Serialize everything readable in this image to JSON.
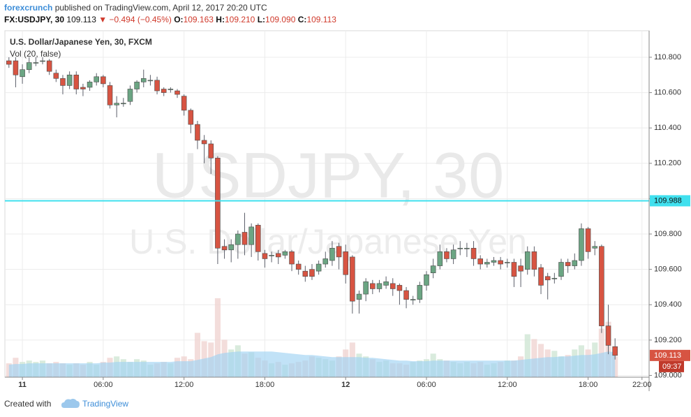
{
  "header": {
    "author": "forexcrunch",
    "published": "published on TradingView.com, April 12, 2017 20:20 UTC",
    "symbol": "FX:USDJPY, 30",
    "last": "109.113",
    "change": "−0.494 (−0.45%)",
    "ohlc": [
      {
        "label": "O:",
        "value": "109.163"
      },
      {
        "label": "H:",
        "value": "109.210"
      },
      {
        "label": "L:",
        "value": "109.090"
      },
      {
        "label": "C:",
        "value": "109.113"
      }
    ]
  },
  "footer": {
    "created": "Created with",
    "brand": "TradingView"
  },
  "chart_data": {
    "type": "candlestick",
    "legend_title": "U.S. Dollar/Japanese Yen, 30, FXCM",
    "legend_subtitle": "Vol (20, false)",
    "watermark": "USDJPY, 30",
    "watermark_subtitle": "U.S. Dollar/Japanese Yen",
    "x": [
      -1,
      -0.5,
      0,
      0.5,
      1,
      1.5,
      2,
      2.5,
      3,
      3.5,
      4,
      4.5,
      5,
      5.5,
      6,
      6.5,
      7,
      7.5,
      8,
      8.5,
      9,
      9.5,
      10,
      10.5,
      11,
      11.5,
      12,
      12.5,
      13,
      13.5,
      14,
      14.5,
      15,
      15.5,
      16,
      16.5,
      17,
      17.5,
      18,
      18.5,
      19,
      19.5,
      20,
      20.5,
      21,
      21.5,
      22,
      22.5,
      23,
      23.5,
      24,
      24.5,
      25,
      25.5,
      26,
      26.5,
      27,
      27.5,
      28,
      28.5,
      29,
      29.5,
      30,
      30.5,
      31,
      31.5,
      32,
      32.5,
      33,
      33.5,
      34,
      34.5,
      35,
      35.5,
      36,
      36.5,
      37,
      37.5,
      38,
      38.5,
      39,
      39.5,
      40,
      40.5,
      41,
      41.5,
      42,
      42.5,
      43,
      43.5,
      44
    ],
    "open": [
      110.78,
      110.78,
      110.69,
      110.73,
      110.77,
      110.78,
      110.78,
      110.71,
      110.68,
      110.64,
      110.7,
      110.63,
      110.63,
      110.66,
      110.69,
      110.64,
      110.53,
      110.54,
      110.55,
      110.62,
      110.66,
      110.67,
      110.67,
      110.62,
      110.62,
      110.61,
      110.58,
      110.5,
      110.42,
      110.33,
      110.31,
      110.23,
      109.73,
      109.71,
      109.74,
      109.81,
      109.74,
      109.85,
      109.69,
      109.68,
      109.69,
      109.68,
      109.7,
      109.63,
      109.59,
      109.6,
      109.59,
      109.63,
      109.65,
      109.73,
      109.7,
      109.67,
      109.43,
      109.46,
      109.52,
      109.49,
      109.51,
      109.52,
      109.51,
      109.48,
      109.43,
      109.43,
      109.51,
      109.58,
      109.62,
      109.7,
      109.66,
      109.72,
      109.72,
      109.72,
      109.66,
      109.63,
      109.64,
      109.65,
      109.64,
      109.64,
      109.62,
      109.6,
      109.7,
      109.61,
      109.56,
      109.55,
      109.56,
      109.64,
      109.62,
      109.65,
      109.83,
      109.72,
      109.73,
      109.28,
      109.163
    ],
    "high": [
      110.8,
      110.8,
      110.76,
      110.8,
      110.8,
      110.8,
      110.79,
      110.73,
      110.7,
      110.72,
      110.72,
      110.65,
      110.67,
      110.71,
      110.7,
      110.66,
      110.58,
      110.57,
      110.64,
      110.67,
      110.73,
      110.7,
      110.69,
      110.63,
      110.63,
      110.62,
      110.59,
      110.51,
      110.44,
      110.36,
      110.33,
      110.24,
      109.77,
      109.77,
      109.82,
      109.92,
      109.86,
      109.86,
      109.71,
      109.7,
      109.71,
      109.71,
      109.71,
      109.65,
      109.62,
      109.63,
      109.65,
      109.7,
      109.76,
      109.75,
      109.74,
      109.68,
      109.48,
      109.55,
      109.54,
      109.54,
      109.56,
      109.55,
      109.52,
      109.5,
      109.45,
      109.53,
      109.59,
      109.66,
      109.74,
      109.72,
      109.74,
      109.76,
      109.75,
      109.76,
      109.68,
      109.66,
      109.67,
      109.67,
      109.66,
      109.66,
      109.66,
      109.73,
      109.73,
      109.63,
      109.58,
      109.58,
      109.66,
      109.66,
      109.69,
      109.86,
      109.84,
      109.76,
      109.74,
      109.4,
      109.21
    ],
    "low": [
      110.74,
      110.63,
      110.65,
      110.71,
      110.75,
      110.76,
      110.7,
      110.66,
      110.59,
      110.62,
      110.59,
      110.58,
      110.61,
      110.64,
      110.63,
      110.51,
      110.46,
      110.52,
      110.53,
      110.6,
      110.63,
      110.64,
      110.59,
      110.58,
      110.6,
      110.57,
      110.47,
      110.37,
      110.28,
      110.2,
      110.14,
      109.63,
      109.66,
      109.64,
      109.66,
      109.68,
      109.67,
      109.65,
      109.61,
      109.64,
      109.63,
      109.66,
      109.59,
      109.57,
      109.53,
      109.54,
      109.57,
      109.61,
      109.62,
      109.6,
      109.52,
      109.35,
      109.35,
      109.42,
      109.46,
      109.47,
      109.49,
      109.45,
      109.4,
      109.38,
      109.4,
      109.41,
      109.48,
      109.55,
      109.6,
      109.64,
      109.63,
      109.68,
      109.67,
      109.62,
      109.6,
      109.61,
      109.62,
      109.6,
      109.61,
      109.5,
      109.5,
      109.57,
      109.56,
      109.46,
      109.43,
      109.52,
      109.54,
      109.58,
      109.6,
      109.62,
      109.66,
      109.68,
      109.24,
      109.12,
      109.09
    ],
    "close": [
      110.76,
      110.7,
      110.73,
      110.77,
      110.77,
      110.78,
      110.72,
      110.68,
      110.64,
      110.7,
      110.62,
      110.62,
      110.66,
      110.69,
      110.65,
      110.53,
      110.54,
      110.54,
      110.62,
      110.66,
      110.68,
      110.67,
      110.61,
      110.6,
      110.62,
      110.59,
      110.5,
      110.42,
      110.33,
      110.31,
      110.23,
      109.72,
      109.71,
      109.74,
      109.8,
      109.74,
      109.84,
      109.7,
      109.66,
      109.68,
      109.67,
      109.7,
      109.63,
      109.6,
      109.56,
      109.56,
      109.63,
      109.66,
      109.72,
      109.67,
      109.57,
      109.42,
      109.46,
      109.53,
      109.49,
      109.52,
      109.53,
      109.49,
      109.48,
      109.43,
      109.43,
      109.51,
      109.57,
      109.62,
      109.7,
      109.66,
      109.71,
      109.72,
      109.72,
      109.66,
      109.63,
      109.64,
      109.65,
      109.63,
      109.64,
      109.56,
      109.59,
      109.7,
      109.6,
      109.51,
      109.54,
      109.55,
      109.64,
      109.62,
      109.65,
      109.83,
      109.7,
      109.73,
      109.28,
      109.17,
      109.113
    ],
    "xlim": [
      -1.3,
      46.53
    ],
    "xticks": [
      {
        "value": 0,
        "label": "11"
      },
      {
        "value": 6,
        "label": "06:00"
      },
      {
        "value": 12,
        "label": "12:00"
      },
      {
        "value": 18,
        "label": "18:00"
      },
      {
        "value": 24,
        "label": "12"
      },
      {
        "value": 30,
        "label": "06:00"
      },
      {
        "value": 36,
        "label": "12:00"
      },
      {
        "value": 42,
        "label": "18:00"
      },
      {
        "value": 46,
        "label": "22:00"
      }
    ],
    "ylim": [
      108.99,
      110.95
    ],
    "yticks": [
      {
        "value": 109,
        "label": "109.000"
      },
      {
        "value": 109.2,
        "label": "109.200"
      },
      {
        "value": 109.4,
        "label": "109.400"
      },
      {
        "value": 109.6,
        "label": "109.600"
      },
      {
        "value": 109.8,
        "label": "109.800"
      },
      {
        "value": 110,
        "label": "110.000"
      },
      {
        "value": 110.2,
        "label": "110.200"
      },
      {
        "value": 110.4,
        "label": "110.400"
      },
      {
        "value": 110.6,
        "label": "110.600"
      },
      {
        "value": 110.8,
        "label": "110.800"
      }
    ],
    "grid": true,
    "up_color": "#6ba583",
    "down_color": "#d75442",
    "volume": {
      "ylim": [
        0,
        500
      ],
      "up_color": "#cfe6d5",
      "down_color": "#f0d5d2",
      "ma_color": "#9fd3f2",
      "values": [
        20,
        28,
        22,
        24,
        22,
        24,
        20,
        22,
        20,
        18,
        20,
        18,
        22,
        18,
        22,
        28,
        30,
        26,
        22,
        26,
        24,
        18,
        20,
        22,
        20,
        28,
        30,
        26,
        64,
        52,
        50,
        114,
        54,
        40,
        46,
        34,
        36,
        28,
        24,
        20,
        22,
        18,
        20,
        22,
        24,
        30,
        28,
        26,
        24,
        30,
        40,
        50,
        34,
        30,
        26,
        22,
        24,
        20,
        20,
        18,
        22,
        24,
        26,
        34,
        26,
        24,
        22,
        20,
        22,
        20,
        22,
        18,
        20,
        22,
        24,
        24,
        30,
        62,
        55,
        48,
        40,
        38,
        30,
        32,
        40,
        46,
        40,
        50,
        70,
        80,
        30
      ],
      "ma": [
        18,
        19,
        19,
        20,
        20,
        20,
        20,
        20,
        20,
        20,
        20,
        20,
        20,
        20,
        21,
        21,
        22,
        22,
        22,
        22,
        22,
        22,
        22,
        22,
        22,
        23,
        23,
        23,
        25,
        27,
        29,
        33,
        35,
        36,
        37,
        37,
        37,
        37,
        37,
        37,
        36,
        35,
        34,
        33,
        32,
        32,
        31,
        30,
        29,
        29,
        29,
        29,
        29,
        28,
        28,
        27,
        26,
        25,
        24,
        24,
        23,
        23,
        23,
        24,
        24,
        24,
        24,
        24,
        24,
        24,
        24,
        24,
        24,
        24,
        24,
        24,
        25,
        26,
        27,
        28,
        29,
        29,
        30,
        30,
        31,
        32,
        32,
        33,
        35,
        37,
        36
      ]
    },
    "hline": {
      "value": 109.988,
      "color": "#40e0ee"
    },
    "last_price": 109.113,
    "countdown": "09:37"
  }
}
